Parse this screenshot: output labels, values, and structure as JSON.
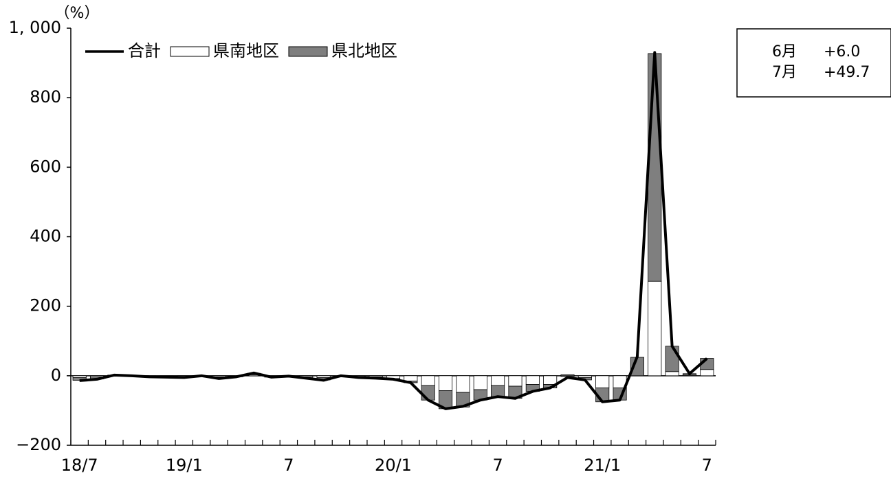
{
  "chart_data": {
    "type": "bar-line",
    "y_unit": "（%）",
    "categories": [
      "18/7",
      null,
      null,
      null,
      null,
      null,
      "19/1",
      null,
      null,
      null,
      null,
      null,
      "7",
      null,
      null,
      null,
      null,
      null,
      "20/1",
      null,
      null,
      null,
      null,
      null,
      "7",
      null,
      null,
      null,
      null,
      null,
      "21/1",
      null,
      null,
      null,
      null,
      null,
      "7"
    ],
    "series": [
      {
        "name": "合計",
        "kind": "line",
        "color": "#000000",
        "values": [
          -14,
          -10,
          2,
          0,
          -3,
          -4,
          -5,
          0,
          -8,
          -3,
          8,
          -4,
          -1,
          -7,
          -13,
          0,
          -5,
          -7,
          -10,
          -20,
          -70,
          -95,
          -88,
          -70,
          -60,
          -65,
          -45,
          -35,
          -5,
          -12,
          -75,
          -70,
          55,
          930,
          85,
          6.0,
          49.7
        ]
      },
      {
        "name": "県南地区",
        "kind": "bar",
        "color": "#ffffff",
        "values": [
          -5,
          -3,
          1,
          0,
          -1,
          -2,
          -2,
          0,
          -3,
          -1,
          3,
          -2,
          0,
          -3,
          -5,
          0,
          -2,
          -3,
          -8,
          -15,
          -28,
          -43,
          -48,
          -40,
          -28,
          -30,
          -25,
          -25,
          -2,
          -5,
          -35,
          -35,
          0,
          272,
          12,
          2,
          18
        ]
      },
      {
        "name": "県北地区",
        "kind": "bar",
        "color": "#7f7f7f",
        "values": [
          -8,
          -6,
          1,
          0,
          -2,
          -2,
          -3,
          0,
          -4,
          -2,
          4,
          -2,
          -1,
          -4,
          -7,
          0,
          -3,
          -4,
          -2,
          -5,
          -42,
          -52,
          -42,
          -30,
          -32,
          -35,
          -20,
          -10,
          3,
          -7,
          -40,
          -35,
          53,
          655,
          73,
          4,
          32
        ]
      }
    ],
    "ylim": [
      -200,
      1000
    ],
    "yticks": [
      {
        "value": -200,
        "label": "−200"
      },
      0,
      200,
      400,
      600,
      800,
      {
        "value": 1000,
        "label": "1, 000"
      }
    ],
    "legend": "top-left",
    "annotation": [
      {
        "month": "6月",
        "value": "+6.0"
      },
      {
        "month": "7月",
        "value": "+49.7"
      }
    ]
  }
}
